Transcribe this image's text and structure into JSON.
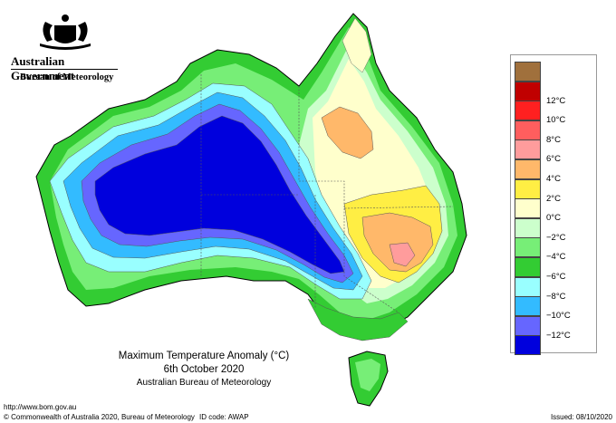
{
  "header": {
    "agency": "Australian Government",
    "bureau": "Bureau of Meteorology",
    "logo_icon": "coat-of-arms-icon"
  },
  "map": {
    "title": "Maximum Temperature Anomaly (°C)",
    "date": "6th October 2020",
    "source": "Australian Bureau of Meteorology"
  },
  "legend": {
    "items": [
      {
        "label": "",
        "color": "#a0703c"
      },
      {
        "label": "12°C",
        "color": "#c00000"
      },
      {
        "label": "10°C",
        "color": "#ff2020"
      },
      {
        "label": "8°C",
        "color": "#ff5e5e"
      },
      {
        "label": "6°C",
        "color": "#ff9c9c"
      },
      {
        "label": "4°C",
        "color": "#ffb86a"
      },
      {
        "label": "2°C",
        "color": "#ffee44"
      },
      {
        "label": "0°C",
        "color": "#ffffcc"
      },
      {
        "label": "−2°C",
        "color": "#ccffcc"
      },
      {
        "label": "−4°C",
        "color": "#77ee77"
      },
      {
        "label": "−6°C",
        "color": "#33cc33"
      },
      {
        "label": "−8°C",
        "color": "#99ffff"
      },
      {
        "label": "−10°C",
        "color": "#33bbff"
      },
      {
        "label": "−12°C",
        "color": "#6666ff"
      },
      {
        "label": "",
        "color": "#0000dd"
      }
    ]
  },
  "footer": {
    "url": "http://www.bom.gov.au",
    "copyright": "© Commonwealth of Australia 2020, Bureau of Meteorology",
    "id_code": "ID code: AWAP",
    "issued": "Issued: 08/10/2020"
  }
}
